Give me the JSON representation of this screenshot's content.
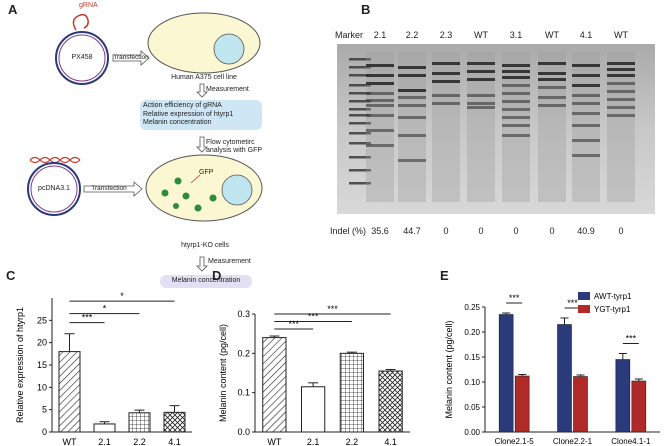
{
  "panels": {
    "a": "A",
    "b": "B",
    "c": "C",
    "d": "D",
    "e": "E"
  },
  "panel_a": {
    "grna_label": "gRNA",
    "plasmid1": "PX458",
    "plasmid2": "pcDNA3.1",
    "transfection1": "Transfection",
    "transfection2": "Transfection",
    "cell_line": "Human A375 cell line",
    "measurement1": "Measurement",
    "box1_lines": [
      "Action efficiency of gRNA",
      "Relative expression of htyrp1",
      "Melanin concentration"
    ],
    "flow_lines": [
      "Flow cytometirc",
      "analysis with GFP"
    ],
    "gfp": "GFP",
    "ko_cells": "htyrp1-KO cells",
    "measurement2": "Measurement",
    "box2": "Melanin concentration"
  },
  "panel_b": {
    "marker_label": "Marker",
    "lanes": [
      "2.1",
      "2.2",
      "2.3",
      "WT",
      "3.1",
      "WT",
      "4.1",
      "WT"
    ],
    "indel_label": "Indel (%)",
    "indel_values": [
      "35.6",
      "44.7",
      "0",
      "0",
      "0",
      "0",
      "40.9",
      "0"
    ]
  },
  "chart_data": [
    {
      "type": "bar",
      "panel": "C",
      "categories": [
        "WT",
        "2.1",
        "2.2",
        "4.1"
      ],
      "values": [
        18,
        1.8,
        4.3,
        4.4
      ],
      "errors": [
        4,
        0.5,
        0.6,
        1.5
      ],
      "ylabel": "Relative expression of htyrp1",
      "ylim": [
        0,
        30
      ],
      "yticks": [
        "0",
        "5",
        "10",
        "15",
        "20",
        "25"
      ],
      "significance": [
        "***",
        "*",
        "*"
      ],
      "patterns": [
        "diagonal",
        "blank",
        "grid",
        "crosshatch"
      ]
    },
    {
      "type": "bar",
      "panel": "D",
      "categories": [
        "WT",
        "2.1",
        "2.2",
        "4.1"
      ],
      "values": [
        0.24,
        0.115,
        0.2,
        0.155
      ],
      "errors": [
        0.004,
        0.01,
        0.003,
        0.004
      ],
      "ylabel": "Melanin content (pg/cell)",
      "ylim": [
        0,
        0.3
      ],
      "yticks": [
        "0.0",
        "0.1",
        "0.2",
        "0.3"
      ],
      "significance": [
        "***",
        "***",
        "***"
      ],
      "patterns": [
        "diagonal",
        "blank",
        "grid",
        "crosshatch"
      ]
    },
    {
      "type": "bar",
      "panel": "E",
      "categories": [
        "Clone2.1-5",
        "Clone2.2-1",
        "Clone4.1-1"
      ],
      "series": [
        {
          "name": "AWT-tyrp1",
          "values": [
            0.235,
            0.215,
            0.145
          ],
          "errors": [
            0.003,
            0.013,
            0.012
          ],
          "color": "#2b3a7a"
        },
        {
          "name": "YGT-tyrp1",
          "values": [
            0.112,
            0.111,
            0.102
          ],
          "errors": [
            0.003,
            0.003,
            0.004
          ],
          "color": "#b02a2a"
        }
      ],
      "ylabel": "Melanin content (pg/cell)",
      "ylim": [
        0,
        0.25
      ],
      "yticks": [
        "0.00",
        "0.05",
        "0.10",
        "0.15",
        "0.20",
        "0.25"
      ],
      "significance": [
        "***",
        "***",
        "***"
      ],
      "legend": "top-right"
    }
  ]
}
